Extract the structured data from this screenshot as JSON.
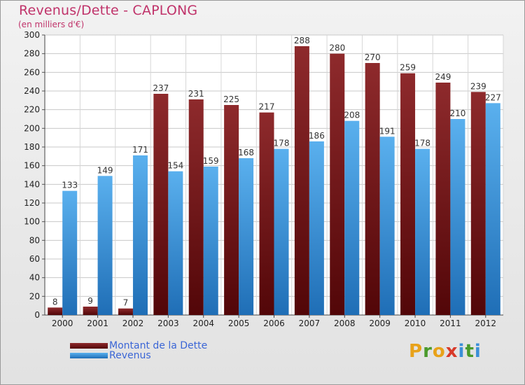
{
  "title": "Revenus/Dette - CAPLONG",
  "subtitle": "(en milliers d'€)",
  "logo": {
    "letters": [
      "P",
      "r",
      "o",
      "x",
      "i",
      "t",
      "i"
    ],
    "colors": [
      "#e8a21a",
      "#4a9a2c",
      "#e8a21a",
      "#d83a2a",
      "#3b8fd8",
      "#4a9a2c",
      "#3b8fd8"
    ]
  },
  "chart_data": {
    "type": "bar",
    "categories": [
      "2000",
      "2001",
      "2002",
      "2003",
      "2004",
      "2005",
      "2006",
      "2007",
      "2008",
      "2009",
      "2010",
      "2011",
      "2012"
    ],
    "series": [
      {
        "name": "Montant de la Dette",
        "color": "#7a1518",
        "values": [
          8,
          9,
          7,
          237,
          231,
          225,
          217,
          288,
          280,
          270,
          259,
          249,
          239
        ]
      },
      {
        "name": "Revenus",
        "color": "#3a8fd6",
        "values": [
          133,
          149,
          171,
          154,
          159,
          168,
          178,
          186,
          208,
          191,
          178,
          210,
          227
        ]
      }
    ],
    "ylim": [
      0,
      300
    ],
    "yticks": [
      0,
      20,
      40,
      60,
      80,
      100,
      120,
      140,
      160,
      180,
      200,
      220,
      240,
      260,
      280,
      300
    ],
    "grid": true,
    "legend": "bottom-left"
  }
}
